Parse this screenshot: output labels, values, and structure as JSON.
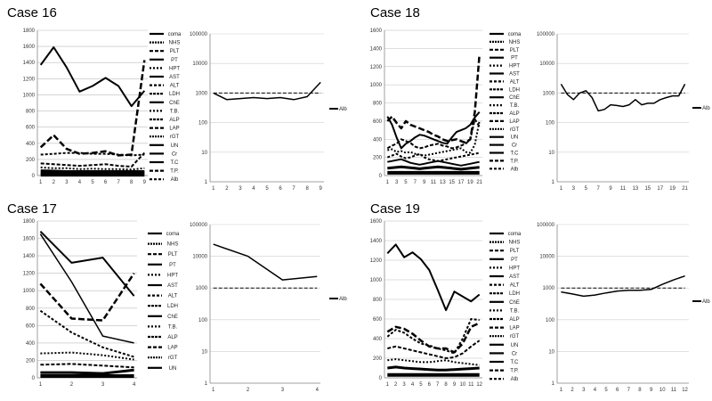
{
  "cases": [
    {
      "title": "Case 16",
      "legend": [
        "coma",
        "NHS",
        "PLT",
        "PT",
        "HPT",
        "AST",
        "ALT",
        "LDH",
        "ChE",
        "T.B.",
        "ALP",
        "LAP",
        "rGT",
        "UN",
        "Cr",
        "T.C",
        "T.P.",
        "Alb"
      ],
      "log_legend": "Alb"
    },
    {
      "title": "Case 18",
      "legend": [
        "coma",
        "NHS",
        "PLT",
        "PT",
        "HPT",
        "AST",
        "ALT",
        "LDH",
        "ChE",
        "T.B.",
        "ALP",
        "LAP",
        "rGT",
        "UN",
        "Cr",
        "T.C",
        "T.P.",
        "Alb"
      ],
      "log_legend": "Alb"
    },
    {
      "title": "Case 17",
      "legend": [
        "coma",
        "NHS",
        "PLT",
        "PT",
        "HPT",
        "AST",
        "ALT",
        "LDH",
        "ChE",
        "T.B.",
        "ALP",
        "LAP",
        "rGT",
        "UN"
      ],
      "log_legend": "Alb"
    },
    {
      "title": "Case 19",
      "legend": [
        "coma",
        "NHS",
        "PLT",
        "PT",
        "HPT",
        "AST",
        "ALT",
        "LDH",
        "ChE",
        "T.B.",
        "ALP",
        "LAP",
        "rGT",
        "UN",
        "Cr",
        "T.C",
        "T.P.",
        "Alb"
      ],
      "log_legend": "Alb"
    }
  ],
  "chart_data": [
    {
      "type": "line",
      "x": [
        1,
        2,
        3,
        4,
        5,
        6,
        7,
        8,
        9
      ],
      "ylim": [
        0,
        1800
      ],
      "yticks": [
        0,
        200,
        400,
        600,
        800,
        1000,
        1200,
        1400,
        1600,
        1800
      ],
      "series": [
        {
          "values": [
            1370,
            1590,
            1340,
            1040,
            1110,
            1210,
            1110,
            860,
            1050
          ],
          "dash": "none",
          "width": 2
        },
        {
          "values": [
            350,
            500,
            330,
            270,
            280,
            300,
            250,
            260,
            1430
          ],
          "dash": "7,3",
          "width": 2.5
        },
        {
          "values": [
            260,
            270,
            280,
            280,
            270,
            270,
            260,
            250,
            260
          ],
          "dash": "3,2",
          "width": 2
        },
        {
          "values": [
            150,
            140,
            130,
            120,
            130,
            140,
            120,
            110,
            280
          ],
          "dash": "4,2",
          "width": 2
        },
        {
          "values": [
            100,
            90,
            90,
            80,
            85,
            80,
            80,
            75,
            90
          ],
          "dash": "2,2",
          "width": 2
        },
        {
          "values": [
            60,
            55,
            50,
            50,
            50,
            50,
            50,
            50,
            50
          ],
          "dash": "none",
          "width": 3
        },
        {
          "values": [
            30,
            30,
            30,
            30,
            30,
            30,
            30,
            30,
            30
          ],
          "dash": "none",
          "width": 4
        },
        {
          "values": [
            10,
            10,
            10,
            10,
            10,
            10,
            10,
            10,
            10
          ],
          "dash": "none",
          "width": 4
        }
      ]
    },
    {
      "type": "line",
      "scale": "log",
      "x": [
        1,
        2,
        3,
        4,
        5,
        6,
        7,
        8,
        9
      ],
      "ylim": [
        1,
        100000
      ],
      "yticks": [
        1,
        10,
        100,
        1000,
        10000,
        100000
      ],
      "series": [
        {
          "values": [
            1000,
            600,
            650,
            700,
            650,
            700,
            600,
            750,
            2300
          ],
          "dash": "none",
          "width": 1.5
        },
        {
          "values": [
            1000,
            1000,
            1000,
            1000,
            1000,
            1000,
            1000,
            1000,
            1000
          ],
          "dash": "4,2",
          "width": 1
        }
      ]
    },
    {
      "type": "line",
      "x": [
        1,
        2,
        3,
        4,
        5,
        6,
        7,
        8,
        9,
        10,
        11,
        12,
        13,
        14,
        15,
        16,
        17,
        18,
        19,
        20,
        21
      ],
      "xticks": [
        1,
        3,
        5,
        7,
        9,
        11,
        13,
        15,
        17,
        19,
        21
      ],
      "ylim": [
        0,
        1600
      ],
      "yticks": [
        0,
        200,
        400,
        600,
        800,
        1000,
        1200,
        1400,
        1600
      ],
      "series": [
        {
          "values": [
            650,
            560,
            420,
            300,
            350,
            380,
            420,
            450,
            440,
            420,
            400,
            380,
            360,
            350,
            420,
            480,
            500,
            520,
            560,
            640,
            700
          ],
          "dash": "none",
          "width": 2
        },
        {
          "values": [
            600,
            650,
            580,
            520,
            600,
            560,
            540,
            520,
            500,
            480,
            450,
            430,
            400,
            380,
            390,
            400,
            380,
            360,
            400,
            700,
            1330
          ],
          "dash": "7,3",
          "width": 2.5
        },
        {
          "values": [
            300,
            330,
            350,
            400,
            380,
            360,
            320,
            300,
            310,
            330,
            340,
            350,
            330,
            320,
            300,
            310,
            330,
            350,
            400,
            620,
            540
          ],
          "dash": "4,2",
          "width": 2
        },
        {
          "values": [
            280,
            290,
            260,
            270,
            250,
            260,
            240,
            230,
            220,
            230,
            240,
            250,
            260,
            270,
            280,
            290,
            300,
            260,
            250,
            340,
            600
          ],
          "dash": "2,2",
          "width": 2
        },
        {
          "values": [
            200,
            220,
            240,
            210,
            190,
            200,
            220,
            240,
            200,
            180,
            170,
            160,
            170,
            180,
            190,
            200,
            210,
            220,
            230,
            240,
            250
          ],
          "dash": "3,2",
          "width": 2
        },
        {
          "values": [
            150,
            160,
            170,
            180,
            160,
            140,
            130,
            120,
            130,
            140,
            150,
            160,
            150,
            140,
            130,
            120,
            110,
            120,
            130,
            140,
            150
          ],
          "dash": "none",
          "width": 2
        },
        {
          "values": [
            80,
            85,
            90,
            95,
            90,
            85,
            80,
            75,
            80,
            85,
            90,
            95,
            90,
            85,
            80,
            75,
            70,
            75,
            80,
            85,
            90
          ],
          "dash": "none",
          "width": 3
        },
        {
          "values": [
            30,
            30,
            30,
            30,
            30,
            30,
            30,
            30,
            30,
            30,
            30,
            30,
            30,
            30,
            30,
            30,
            30,
            30,
            30,
            30,
            30
          ],
          "dash": "none",
          "width": 4
        }
      ]
    },
    {
      "type": "line",
      "scale": "log",
      "x": [
        1,
        2,
        3,
        4,
        5,
        6,
        7,
        8,
        9,
        10,
        11,
        12,
        13,
        14,
        15,
        16,
        17,
        18,
        19,
        20,
        21
      ],
      "xticks": [
        1,
        3,
        5,
        7,
        9,
        11,
        13,
        15,
        17,
        19,
        21
      ],
      "ylim": [
        1,
        100000
      ],
      "yticks": [
        1,
        10,
        100,
        1000,
        10000,
        100000
      ],
      "series": [
        {
          "values": [
            2000,
            900,
            600,
            1000,
            1200,
            700,
            250,
            280,
            400,
            380,
            350,
            400,
            600,
            400,
            450,
            450,
            600,
            700,
            800,
            800,
            2000
          ],
          "dash": "none",
          "width": 1.5
        },
        {
          "values": [
            1000,
            1000,
            1000,
            1000,
            1000,
            1000,
            1000,
            1000,
            1000,
            1000,
            1000,
            1000,
            1000,
            1000,
            1000,
            1000,
            1000,
            1000,
            1000,
            1000,
            1000
          ],
          "dash": "4,2",
          "width": 1
        }
      ]
    },
    {
      "type": "line",
      "x": [
        1,
        2,
        3,
        4
      ],
      "ylim": [
        0,
        1800
      ],
      "yticks": [
        0,
        200,
        400,
        600,
        800,
        1000,
        1200,
        1400,
        1600,
        1800
      ],
      "series": [
        {
          "values": [
            1680,
            1320,
            1380,
            940
          ],
          "dash": "none",
          "width": 2
        },
        {
          "values": [
            1650,
            1100,
            480,
            400
          ],
          "dash": "none",
          "width": 1.5
        },
        {
          "values": [
            1080,
            680,
            660,
            1200
          ],
          "dash": "7,3",
          "width": 2.5
        },
        {
          "values": [
            770,
            520,
            350,
            240
          ],
          "dash": "3,2",
          "width": 2
        },
        {
          "values": [
            280,
            290,
            260,
            210
          ],
          "dash": "2,2",
          "width": 2
        },
        {
          "values": [
            150,
            160,
            140,
            120
          ],
          "dash": "4,2",
          "width": 2
        },
        {
          "values": [
            60,
            60,
            50,
            90
          ],
          "dash": "none",
          "width": 3
        },
        {
          "values": [
            20,
            20,
            20,
            20
          ],
          "dash": "none",
          "width": 4
        }
      ]
    },
    {
      "type": "line",
      "scale": "log",
      "x": [
        1,
        2,
        3,
        4
      ],
      "ylim": [
        1,
        100000
      ],
      "yticks": [
        1,
        10,
        100,
        1000,
        10000,
        100000
      ],
      "series": [
        {
          "values": [
            24000,
            10000,
            1800,
            2300
          ],
          "dash": "none",
          "width": 1.5
        },
        {
          "values": [
            1000,
            1000,
            1000,
            1000
          ],
          "dash": "4,2",
          "width": 1
        }
      ]
    },
    {
      "type": "line",
      "x": [
        1,
        2,
        3,
        4,
        5,
        6,
        7,
        8,
        9,
        10,
        11,
        12
      ],
      "ylim": [
        0,
        1600
      ],
      "yticks": [
        0,
        200,
        400,
        600,
        800,
        1000,
        1200,
        1400,
        1600
      ],
      "series": [
        {
          "values": [
            1270,
            1360,
            1230,
            1280,
            1210,
            1100,
            900,
            690,
            880,
            830,
            780,
            850
          ],
          "dash": "none",
          "width": 2
        },
        {
          "values": [
            470,
            520,
            500,
            450,
            380,
            320,
            300,
            300,
            260,
            350,
            520,
            560
          ],
          "dash": "7,3",
          "width": 2.5
        },
        {
          "values": [
            420,
            490,
            460,
            400,
            350,
            330,
            300,
            280,
            250,
            400,
            600,
            590
          ],
          "dash": "3,2",
          "width": 2
        },
        {
          "values": [
            300,
            320,
            300,
            280,
            260,
            240,
            220,
            200,
            210,
            250,
            320,
            380
          ],
          "dash": "4,2",
          "width": 2
        },
        {
          "values": [
            180,
            190,
            180,
            170,
            160,
            160,
            170,
            180,
            160,
            150,
            140,
            130
          ],
          "dash": "2,2",
          "width": 2
        },
        {
          "values": [
            100,
            110,
            100,
            95,
            90,
            85,
            80,
            80,
            85,
            90,
            95,
            100
          ],
          "dash": "none",
          "width": 3
        },
        {
          "values": [
            30,
            30,
            30,
            30,
            30,
            30,
            30,
            30,
            30,
            30,
            30,
            30
          ],
          "dash": "none",
          "width": 4
        }
      ]
    },
    {
      "type": "line",
      "scale": "log",
      "x": [
        1,
        2,
        3,
        4,
        5,
        6,
        7,
        8,
        9,
        10,
        11,
        12
      ],
      "ylim": [
        1,
        100000
      ],
      "yticks": [
        1,
        10,
        100,
        1000,
        10000,
        100000
      ],
      "series": [
        {
          "values": [
            750,
            650,
            550,
            600,
            700,
            800,
            850,
            850,
            900,
            1300,
            1800,
            2400
          ],
          "dash": "none",
          "width": 1.5
        },
        {
          "values": [
            1000,
            1000,
            1000,
            1000,
            1000,
            1000,
            1000,
            1000,
            1000,
            1000,
            1000,
            1000
          ],
          "dash": "4,2",
          "width": 1
        }
      ]
    }
  ]
}
